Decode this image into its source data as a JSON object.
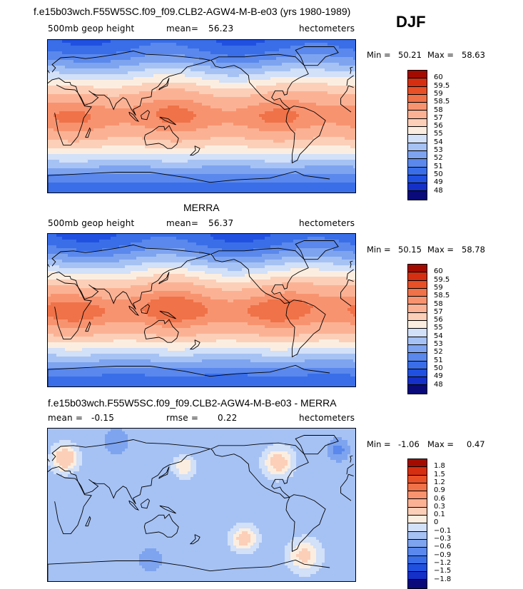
{
  "season": "DJF",
  "palette": {
    "abs": [
      "#0a0a7a",
      "#1530c8",
      "#2050e0",
      "#3a6ee8",
      "#5a88ec",
      "#7ea4f0",
      "#a6c2f4",
      "#d2e0f8",
      "#fbeee0",
      "#fccfb8",
      "#fbb294",
      "#f89370",
      "#f07248",
      "#e85028",
      "#d62e10",
      "#a30b00"
    ],
    "diff": [
      "#0a0a7a",
      "#1530c8",
      "#2050e0",
      "#3a6ee8",
      "#5a88ec",
      "#7ea4f0",
      "#a6c2f4",
      "#d2e0f8",
      "#fbeee0",
      "#fccfb8",
      "#fbb294",
      "#f89370",
      "#f07248",
      "#e85028",
      "#d62e10",
      "#a30b00"
    ],
    "coast": "#000000",
    "border": "#000000"
  },
  "chart_data": [
    {
      "type": "heatmap",
      "name": "model",
      "title": "f.e15b03wch.F55W5SC.f09_f09.CLB2-AGW4-M-B-e03 (yrs 1980-1989)",
      "variable": "500mb geop height",
      "mean_label": "mean=",
      "mean": "56.23",
      "units": "hectometers",
      "min_label": "Min =",
      "min": "50.21",
      "max_label": "Max =",
      "max": "58.63",
      "colorbar_levels": [
        "60",
        "59.5",
        "59",
        "58.5",
        "58",
        "57",
        "56",
        "55",
        "54",
        "53",
        "52",
        "51",
        "50",
        "49",
        "48"
      ],
      "field": {
        "eq_value": 58.4,
        "pole_value": 50.3,
        "nh_dip": 0.6
      }
    },
    {
      "type": "heatmap",
      "name": "obs",
      "title": "MERRA",
      "variable": "500mb geop height",
      "mean_label": "mean=",
      "mean": "56.37",
      "units": "hectometers",
      "min_label": "Min =",
      "min": "50.15",
      "max_label": "Max =",
      "max": "58.78",
      "colorbar_levels": [
        "60",
        "59.5",
        "59",
        "58.5",
        "58",
        "57",
        "56",
        "55",
        "54",
        "53",
        "52",
        "51",
        "50",
        "49",
        "48"
      ],
      "field": {
        "eq_value": 58.6,
        "pole_value": 50.2,
        "nh_dip": 0.7
      }
    },
    {
      "type": "heatmap",
      "name": "diff",
      "title": "f.e15b03wch.F55W5SC.f09_f09.CLB2-AGW4-M-B-e03 - MERRA",
      "mean_label": "mean =",
      "mean": "-0.15",
      "rmse_label": "rmse =",
      "rmse": "0.22",
      "units": "hectometers",
      "min_label": "Min =",
      "min": "-1.06",
      "max_label": "Max =",
      "max": "0.47",
      "colorbar_levels": [
        "1.8",
        "1.5",
        "1.2",
        "0.9",
        "0.6",
        "0.3",
        "0.1",
        "0",
        "−0.1",
        "−0.3",
        "−0.6",
        "−0.9",
        "−1.2",
        "−1.5",
        "−1.8"
      ],
      "field": {
        "base": -0.15
      }
    }
  ]
}
